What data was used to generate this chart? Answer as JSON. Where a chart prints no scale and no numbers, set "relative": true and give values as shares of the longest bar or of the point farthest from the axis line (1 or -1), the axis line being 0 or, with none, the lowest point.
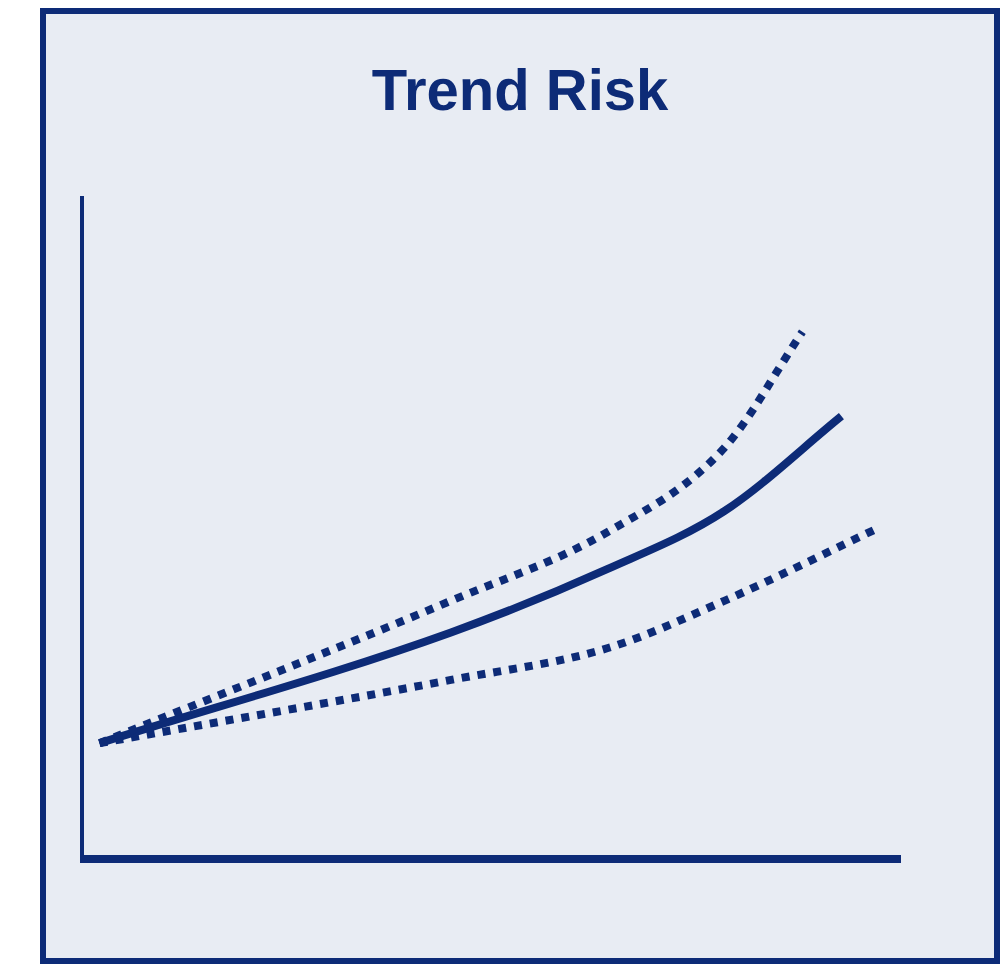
{
  "chart_data": {
    "type": "line",
    "title": "Trend Risk",
    "relative": true,
    "legend": false,
    "grid": false,
    "marker": "none",
    "categories": [
      null,
      null,
      null,
      null,
      null,
      null,
      null,
      null,
      null,
      null,
      null,
      null,
      null,
      null,
      null,
      null,
      null,
      null,
      null,
      null,
      null
    ],
    "series": [
      {
        "color": "#0d2b77",
        "line_style": "dotted",
        "values": [
          0.22,
          null,
          null,
          null,
          null,
          null,
          null,
          null,
          null,
          0.49,
          null,
          null,
          null,
          0.62,
          null,
          null,
          0.78,
          null,
          1,
          null,
          null
        ]
      },
      {
        "color": "#0d2b77",
        "line_style": "solid",
        "values": [
          0.22,
          null,
          null,
          null,
          null,
          null,
          null,
          null,
          null,
          0.43,
          null,
          null,
          null,
          0.55,
          null,
          null,
          0.66,
          null,
          null,
          0.84,
          null
        ]
      },
      {
        "color": "#0d2b77",
        "line_style": "dotted",
        "values": [
          0.22,
          null,
          null,
          null,
          null,
          null,
          null,
          null,
          null,
          0.34,
          null,
          null,
          null,
          0.4,
          null,
          null,
          0.49,
          null,
          null,
          null,
          0.63
        ]
      }
    ]
  }
}
